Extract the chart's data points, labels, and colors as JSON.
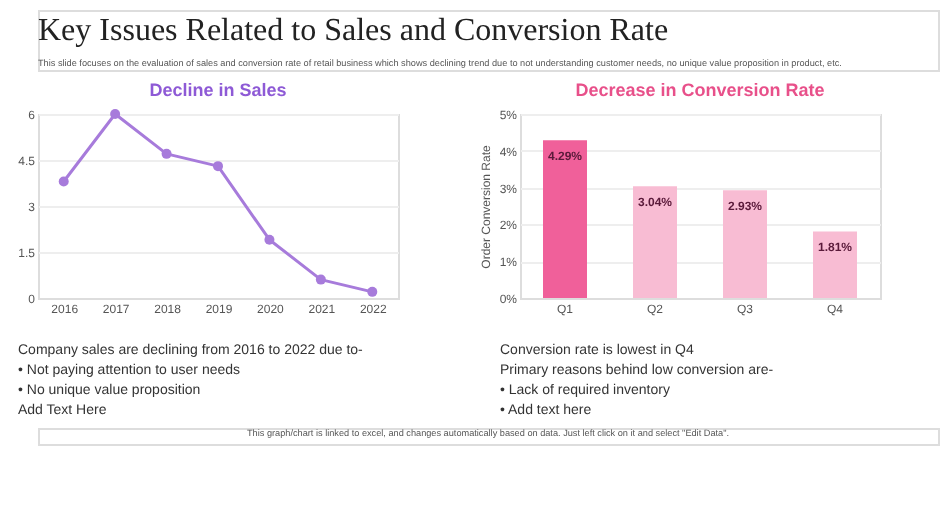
{
  "chart_data": [
    {
      "type": "other",
      "title": "Key Issues Related to Sales and Conversion Rate",
      "subtitle": "This slide focuses on the evaluation of sales and conversion rate of retail business which shows declining trend due to not understanding customer needs, no unique value proposition in product, etc.",
      "annotations": [
        "This graph/chart is linked to excel, and changes automatically based on data. Just left click on it and select \"Edit Data\"."
      ]
    },
    {
      "type": "line",
      "title": "Decline in Sales",
      "categories": [
        "2016",
        "2017",
        "2018",
        "2019",
        "2020",
        "2021",
        "2022"
      ],
      "series": [
        {
          "color": "#a77bdb",
          "values": [
            3.8,
            6.0,
            4.7,
            4.3,
            1.9,
            0.6,
            0.2
          ]
        }
      ],
      "ylim": [
        0,
        6
      ],
      "yticks": [
        0,
        1.5,
        3,
        4.5,
        6
      ],
      "grid": "y",
      "marker": "circle",
      "annotations": [
        "Company sales are declining from 2016 to 2022 due to-",
        "• Not paying attention to user needs",
        "• No unique value proposition",
        "Add Text Here"
      ]
    },
    {
      "type": "bar",
      "title": "Decrease in Conversion Rate",
      "ylabel": "Order Conversion Rate",
      "categories": [
        "Q1",
        "Q2",
        "Q3",
        "Q4"
      ],
      "values": [
        4.29,
        3.04,
        2.93,
        1.81
      ],
      "colors": [
        "#f0609a",
        "#f8bcd3",
        "#f8bcd3",
        "#f8bcd3"
      ],
      "value_labels": [
        "4.29%",
        "3.04%",
        "2.93%",
        "1.81%"
      ],
      "ylim": [
        0,
        5
      ],
      "yticks": [
        {
          "value": 0,
          "label": "0%"
        },
        {
          "value": 1,
          "label": "1%"
        },
        {
          "value": 2,
          "label": "2%"
        },
        {
          "value": 3,
          "label": "3%"
        },
        {
          "value": 4,
          "label": "4%"
        },
        {
          "value": 5,
          "label": "5%"
        }
      ],
      "grid": "y",
      "annotations": [
        "Conversion rate is lowest in Q4",
        "Primary reasons behind low conversion are-",
        "• Lack of required inventory",
        "• Add text here"
      ]
    }
  ]
}
